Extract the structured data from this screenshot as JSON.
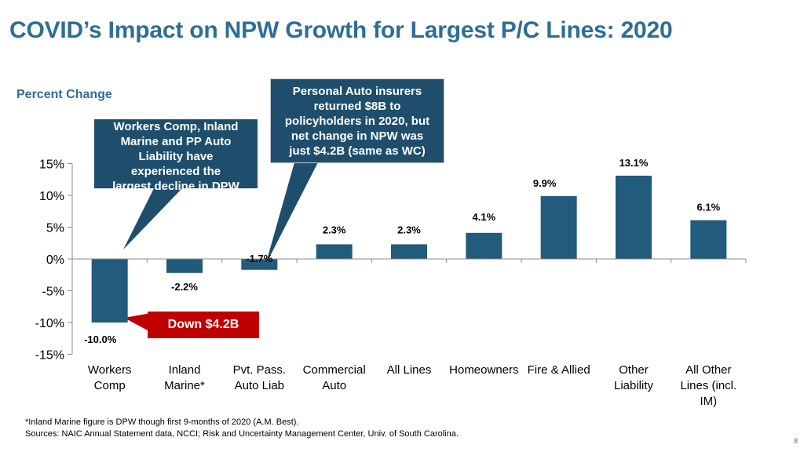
{
  "title": "COVID’s Impact on NPW Growth for Largest P/C Lines: 2020",
  "colors": {
    "bar": "#225b7c",
    "title": "#2e6e95",
    "callout": "#1e4e6c",
    "callout_red": "#c00000"
  },
  "chart_data": {
    "type": "bar",
    "ylabel": "Percent Change",
    "ylim": [
      -15,
      15
    ],
    "yticks": [
      15,
      10,
      5,
      0,
      -5,
      -10,
      -15
    ],
    "ytick_labels": [
      "15%",
      "10%",
      "5%",
      "0%",
      "-5%",
      "-10%",
      "-15%"
    ],
    "categories": [
      [
        "Workers",
        "Comp"
      ],
      [
        "Inland",
        "Marine*"
      ],
      [
        "Pvt. Pass.",
        "Auto Liab"
      ],
      [
        "Commercial",
        "Auto"
      ],
      [
        "All Lines"
      ],
      [
        "Homeowners"
      ],
      [
        "Fire & Allied"
      ],
      [
        "Other",
        "Liability"
      ],
      [
        "All Other",
        "Lines (incl.",
        "IM)"
      ]
    ],
    "values": [
      -10.0,
      -2.2,
      -1.7,
      2.3,
      2.3,
      4.1,
      9.9,
      13.1,
      6.1
    ],
    "data_labels": [
      "-10.0%",
      "-2.2%",
      "-1.7%",
      "2.3%",
      "2.3%",
      "4.1%",
      "9.9%",
      "13.1%",
      "6.1%"
    ],
    "grid": false,
    "legend": "none"
  },
  "callouts": {
    "decline": [
      "Workers Comp, Inland",
      "Marine and PP Auto",
      "Liability have",
      "experienced the",
      "largest decline in DPW"
    ],
    "personal_auto": [
      "Personal Auto insurers",
      "returned $8B to",
      "policyholders in 2020, but",
      "net change in NPW was",
      "just $4.2B (same as WC)"
    ],
    "down": "Down $4.2B"
  },
  "footnotes": [
    "*Inland Marine figure is DPW though first 9-months of 2020 (A.M. Best).",
    "Sources: NAIC Annual Statement data, NCCI; Risk and Uncertainty Management Center, Univ. of South Carolina."
  ],
  "page_number": "8"
}
